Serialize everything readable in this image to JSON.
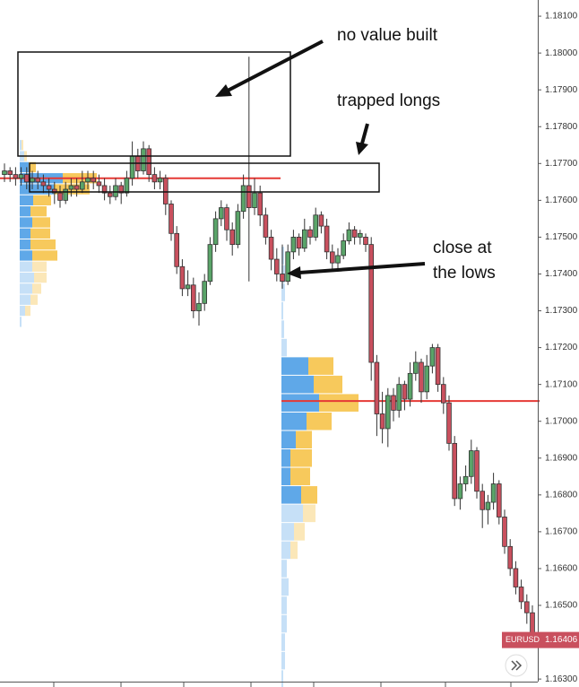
{
  "chart_data": {
    "type": "candlestick",
    "symbol": "EURUSD",
    "last_price": 1.16406,
    "up_color": "#5aa469",
    "down_color": "#c9505e",
    "ylim": [
      1.18144,
      1.16293
    ],
    "yticks": [
      {
        "value": 1.181,
        "label": "1.18100"
      },
      {
        "value": 1.18,
        "label": "1.18000"
      },
      {
        "value": 1.179,
        "label": "1.17900"
      },
      {
        "value": 1.178,
        "label": "1.17800"
      },
      {
        "value": 1.177,
        "label": "1.17700"
      },
      {
        "value": 1.176,
        "label": "1.17600"
      },
      {
        "value": 1.175,
        "label": "1.17500"
      },
      {
        "value": 1.174,
        "label": "1.17400"
      },
      {
        "value": 1.173,
        "label": "1.17300"
      },
      {
        "value": 1.172,
        "label": "1.17200"
      },
      {
        "value": 1.171,
        "label": "1.17100"
      },
      {
        "value": 1.17,
        "label": "1.17000"
      },
      {
        "value": 1.169,
        "label": "1.16900"
      },
      {
        "value": 1.168,
        "label": "1.16800"
      },
      {
        "value": 1.167,
        "label": "1.16700"
      },
      {
        "value": 1.166,
        "label": "1.16600"
      },
      {
        "value": 1.165,
        "label": "1.16500"
      },
      {
        "value": 1.163,
        "label": "1.16300"
      }
    ],
    "ohlc": [
      [
        1.1767,
        1.177,
        1.1765,
        1.1768
      ],
      [
        1.1768,
        1.1769,
        1.1765,
        1.1767
      ],
      [
        1.1767,
        1.1769,
        1.1764,
        1.1766
      ],
      [
        1.1766,
        1.1769,
        1.1764,
        1.1767
      ],
      [
        1.1767,
        1.1769,
        1.1763,
        1.1765
      ],
      [
        1.1765,
        1.1768,
        1.1763,
        1.1766
      ],
      [
        1.1766,
        1.1768,
        1.1763,
        1.1765
      ],
      [
        1.1765,
        1.1767,
        1.1762,
        1.1764
      ],
      [
        1.1764,
        1.1766,
        1.1761,
        1.1763
      ],
      [
        1.1763,
        1.1765,
        1.1759,
        1.1762
      ],
      [
        1.1762,
        1.1764,
        1.1758,
        1.176
      ],
      [
        1.176,
        1.1765,
        1.1759,
        1.1763
      ],
      [
        1.1763,
        1.1766,
        1.1761,
        1.1764
      ],
      [
        1.1764,
        1.1766,
        1.1761,
        1.1763
      ],
      [
        1.1763,
        1.1768,
        1.1762,
        1.1765
      ],
      [
        1.1765,
        1.1768,
        1.1763,
        1.1766
      ],
      [
        1.1766,
        1.1768,
        1.1763,
        1.1765
      ],
      [
        1.1765,
        1.1767,
        1.1762,
        1.1764
      ],
      [
        1.1764,
        1.1766,
        1.176,
        1.1762
      ],
      [
        1.1762,
        1.1764,
        1.1759,
        1.1761
      ],
      [
        1.1761,
        1.1766,
        1.176,
        1.1764
      ],
      [
        1.1764,
        1.1765,
        1.1759,
        1.1762
      ],
      [
        1.1762,
        1.1768,
        1.1761,
        1.1766
      ],
      [
        1.1766,
        1.1776,
        1.1764,
        1.1772
      ],
      [
        1.1772,
        1.1774,
        1.1766,
        1.1768
      ],
      [
        1.1768,
        1.1776,
        1.1767,
        1.1774
      ],
      [
        1.1774,
        1.1775,
        1.1765,
        1.1767
      ],
      [
        1.1767,
        1.1769,
        1.1763,
        1.1765
      ],
      [
        1.1765,
        1.1768,
        1.1763,
        1.1766
      ],
      [
        1.1766,
        1.1767,
        1.1756,
        1.1759
      ],
      [
        1.1759,
        1.176,
        1.1749,
        1.1751
      ],
      [
        1.1751,
        1.1753,
        1.174,
        1.1742
      ],
      [
        1.1742,
        1.1744,
        1.1734,
        1.1736
      ],
      [
        1.1736,
        1.1741,
        1.1734,
        1.1737
      ],
      [
        1.1737,
        1.1739,
        1.1728,
        1.173
      ],
      [
        1.173,
        1.1735,
        1.1726,
        1.1732
      ],
      [
        1.1732,
        1.174,
        1.173,
        1.1738
      ],
      [
        1.1738,
        1.175,
        1.1737,
        1.1748
      ],
      [
        1.1748,
        1.1757,
        1.1746,
        1.1755
      ],
      [
        1.1755,
        1.176,
        1.1753,
        1.1758
      ],
      [
        1.1758,
        1.1759,
        1.1749,
        1.1752
      ],
      [
        1.1752,
        1.1754,
        1.1745,
        1.1748
      ],
      [
        1.1748,
        1.1759,
        1.1747,
        1.1757
      ],
      [
        1.1757,
        1.1767,
        1.1755,
        1.1764
      ],
      [
        1.1764,
        1.1799,
        1.1738,
        1.1758
      ],
      [
        1.1758,
        1.1766,
        1.1756,
        1.1762
      ],
      [
        1.1762,
        1.1764,
        1.1753,
        1.1756
      ],
      [
        1.1756,
        1.1758,
        1.1748,
        1.175
      ],
      [
        1.175,
        1.1752,
        1.1741,
        1.1744
      ],
      [
        1.1744,
        1.1747,
        1.1738,
        1.174
      ],
      [
        1.174,
        1.1748,
        1.1736,
        1.1738
      ],
      [
        1.1738,
        1.1748,
        1.1737,
        1.1746
      ],
      [
        1.1746,
        1.1752,
        1.1744,
        1.175
      ],
      [
        1.175,
        1.1751,
        1.1745,
        1.1747
      ],
      [
        1.1747,
        1.1755,
        1.1746,
        1.1752
      ],
      [
        1.1752,
        1.1753,
        1.1748,
        1.175
      ],
      [
        1.175,
        1.1758,
        1.1749,
        1.1756
      ],
      [
        1.1756,
        1.1757,
        1.1751,
        1.1753
      ],
      [
        1.1753,
        1.1755,
        1.1744,
        1.1746
      ],
      [
        1.1746,
        1.1748,
        1.1741,
        1.1743
      ],
      [
        1.1743,
        1.1747,
        1.1741,
        1.1745
      ],
      [
        1.1745,
        1.1751,
        1.1744,
        1.1749
      ],
      [
        1.1749,
        1.1754,
        1.1748,
        1.1752
      ],
      [
        1.1752,
        1.1753,
        1.1748,
        1.175
      ],
      [
        1.175,
        1.1752,
        1.1748,
        1.1751
      ],
      [
        1.175,
        1.1751,
        1.1746,
        1.1748
      ],
      [
        1.1748,
        1.175,
        1.1711,
        1.1716
      ],
      [
        1.1716,
        1.1718,
        1.1696,
        1.1702
      ],
      [
        1.1702,
        1.1708,
        1.1694,
        1.1698
      ],
      [
        1.1698,
        1.1709,
        1.1693,
        1.1707
      ],
      [
        1.1707,
        1.1709,
        1.17,
        1.1703
      ],
      [
        1.1703,
        1.1712,
        1.1701,
        1.171
      ],
      [
        1.171,
        1.1711,
        1.1703,
        1.1706
      ],
      [
        1.1706,
        1.1716,
        1.1704,
        1.1713
      ],
      [
        1.1713,
        1.1719,
        1.1711,
        1.1716
      ],
      [
        1.1716,
        1.1717,
        1.1705,
        1.1708
      ],
      [
        1.1708,
        1.1718,
        1.1706,
        1.1715
      ],
      [
        1.1715,
        1.1721,
        1.1713,
        1.172
      ],
      [
        1.172,
        1.1721,
        1.1708,
        1.171
      ],
      [
        1.171,
        1.1712,
        1.1702,
        1.1705
      ],
      [
        1.1705,
        1.1707,
        1.1692,
        1.1694
      ],
      [
        1.1694,
        1.1696,
        1.1677,
        1.1679
      ],
      [
        1.1679,
        1.1685,
        1.1676,
        1.1683
      ],
      [
        1.1683,
        1.1688,
        1.1681,
        1.1685
      ],
      [
        1.1685,
        1.1695,
        1.1683,
        1.1692
      ],
      [
        1.1692,
        1.1693,
        1.1679,
        1.1681
      ],
      [
        1.1681,
        1.1683,
        1.1671,
        1.1676
      ],
      [
        1.1676,
        1.168,
        1.1672,
        1.1678
      ],
      [
        1.1678,
        1.1686,
        1.1676,
        1.1683
      ],
      [
        1.1683,
        1.1684,
        1.1672,
        1.1674
      ],
      [
        1.1674,
        1.1676,
        1.1664,
        1.1666
      ],
      [
        1.1666,
        1.1668,
        1.1658,
        1.166
      ],
      [
        1.166,
        1.1662,
        1.1653,
        1.1655
      ],
      [
        1.1655,
        1.1657,
        1.1649,
        1.1651
      ],
      [
        1.1651,
        1.1653,
        1.1645,
        1.1648
      ],
      [
        1.1648,
        1.165,
        1.16395,
        1.16406
      ]
    ],
    "profile_colors": {
      "buy": "#5fa8e8",
      "sell": "#f7c95c",
      "buy_faded": "#c6e0f7",
      "sell_faded": "#fbe7b8",
      "poc": "#e53935"
    },
    "profiles": [
      {
        "poc": 1.1766,
        "value_area": [
          1.1744,
          1.177
        ],
        "levels": [
          1.1775,
          1.1772,
          1.1769,
          1.1766,
          1.1763,
          1.176,
          1.1757,
          1.1754,
          1.1751,
          1.1748,
          1.1745,
          1.1742,
          1.1739,
          1.1736,
          1.1733,
          1.173,
          1.1727
        ],
        "buy": [
          2,
          5,
          10,
          48,
          38,
          15,
          12,
          14,
          12,
          12,
          14,
          14,
          16,
          14,
          12,
          6,
          2
        ],
        "sell": [
          2,
          3,
          8,
          38,
          40,
          20,
          18,
          20,
          22,
          28,
          28,
          16,
          14,
          10,
          8,
          6,
          0
        ]
      },
      {
        "poc": 1.17055,
        "value_area": [
          1.1678,
          1.1717
        ],
        "levels": [
          1.1745,
          1.174,
          1.1735,
          1.173,
          1.1725,
          1.172,
          1.1715,
          1.171,
          1.1705,
          1.17,
          1.1695,
          1.169,
          1.1685,
          1.168,
          1.1675,
          1.167,
          1.1665,
          1.166,
          1.1655,
          1.165,
          1.1645,
          1.164,
          1.1635,
          1.163
        ],
        "buy": [
          3,
          4,
          4,
          2,
          3,
          6,
          30,
          36,
          42,
          28,
          16,
          10,
          10,
          22,
          24,
          14,
          10,
          6,
          8,
          6,
          6,
          4,
          4,
          2
        ],
        "sell": [
          0,
          0,
          0,
          0,
          0,
          0,
          28,
          32,
          44,
          28,
          18,
          24,
          22,
          18,
          14,
          12,
          8,
          0,
          0,
          0,
          0,
          0,
          0,
          0
        ]
      }
    ],
    "annotations": {
      "no_value": "no value built",
      "trapped": "trapped longs",
      "close_lows": [
        "close at",
        "the lows"
      ]
    }
  }
}
